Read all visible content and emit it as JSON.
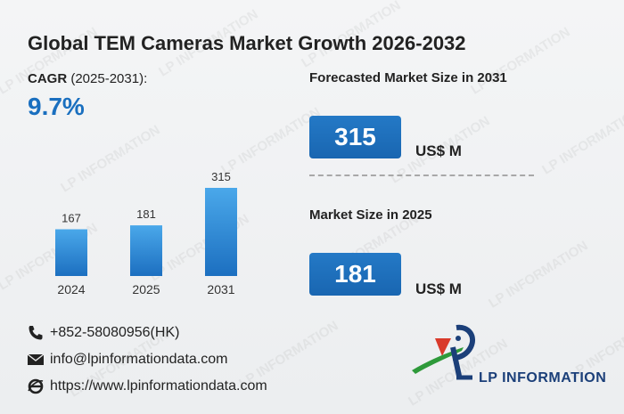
{
  "header": {
    "title": "Global TEM Cameras Market Growth 2026-2032"
  },
  "cagr": {
    "label_bold": "CAGR",
    "label_period": " (2025-2031):",
    "value": "9.7%"
  },
  "forecast": {
    "label": "Forecasted Market Size in 2031",
    "value": "315",
    "unit": "US$ M"
  },
  "current": {
    "label": "Market Size in 2025",
    "value": "181",
    "unit": "US$ M"
  },
  "contact": {
    "phone": "+852-58080956(HK)",
    "email": "info@lpinformationdata.com",
    "website": "https://www.lpinformationdata.com"
  },
  "watermark_text": "LP INFORMATION",
  "logo": {
    "text": "LP INFORMATION",
    "icon": "lp-logo-icon"
  },
  "colors": {
    "accent": "#1a6fbf",
    "bar_top": "#4aa8ea",
    "bar_bottom": "#1c6fc0",
    "logo_green": "#2e9a3a",
    "logo_red": "#d93a2b",
    "logo_navy": "#1b3f79"
  },
  "chart_data": {
    "type": "bar",
    "categories": [
      "2024",
      "2025",
      "2031"
    ],
    "values": [
      167,
      181,
      315
    ],
    "title": "",
    "xlabel": "",
    "ylabel": "",
    "data_labels": true,
    "grid": false
  }
}
